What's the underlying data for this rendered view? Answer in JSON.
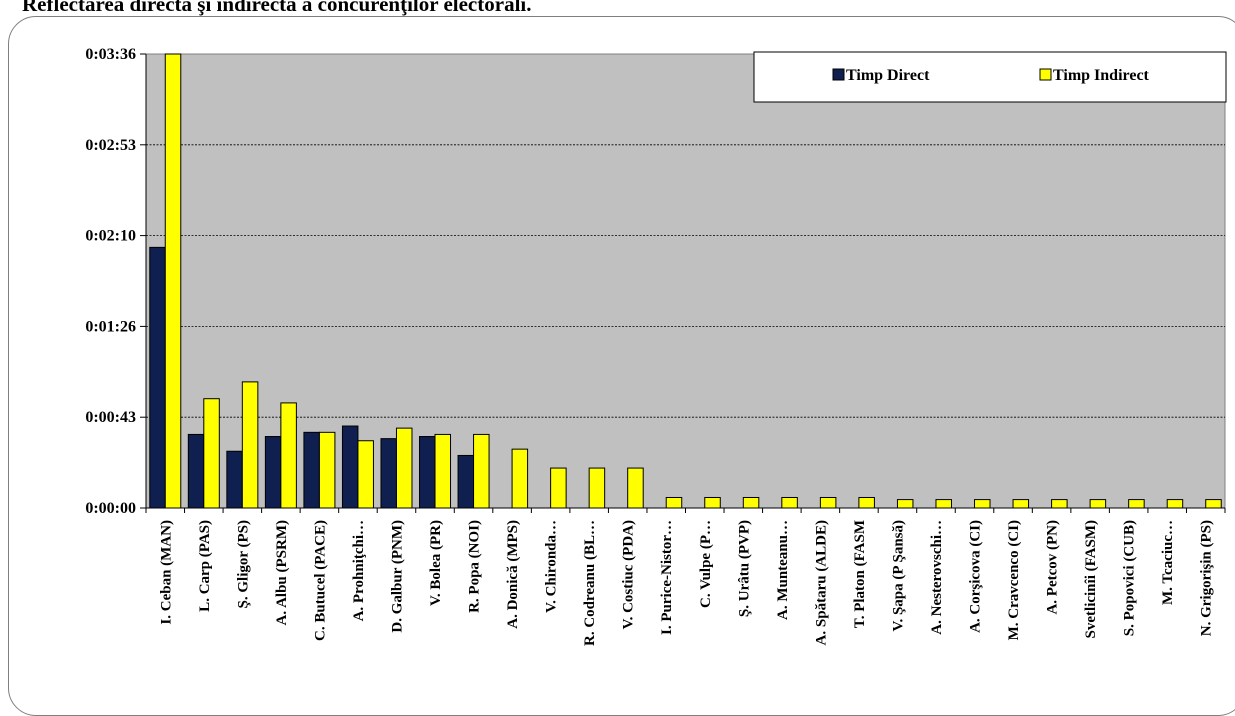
{
  "chart_data": {
    "type": "bar",
    "title": "Reflectarea directă şi indirectă a concurenţilor electorali.",
    "y_ticks": [
      "0:00:00",
      "0:00:43",
      "0:01:26",
      "0:02:10",
      "0:02:53",
      "0:03:36"
    ],
    "ylim_seconds": [
      0,
      216
    ],
    "grid": true,
    "legend_position": "top-right",
    "categories": [
      "I. Ceban (MAN)",
      "L. Carp (PAS)",
      "Ş. Gligor (PS)",
      "A. Albu (PSRM)",
      "C. Butucel (PACE)",
      "A. Prohniţchi…",
      "D. Galbur (PNM)",
      "V. Bolea (PR)",
      "R. Popa (NOI)",
      "A. Donică (MPS)",
      "V. Chironda…",
      "R. Codreanu (BL…",
      "V. Costiuc (PDA)",
      "I. Purice-Nistor…",
      "C. Vulpe (P…",
      "Ş. Urâtu (PVP)",
      "A. Munteanu…",
      "A. Spătaru (ALDE)",
      "T. Platon (FASM",
      "V. Şapa (P Şansă)",
      "A. Nesterovschi…",
      "A. Corşicova (CI)",
      "M. Cravcenco (CI)",
      "A. Petcov (PN)",
      "Svetlicinîi (FASM)",
      "S. Popovici (CUB)",
      "M. Tcaciuc…",
      "N. Grigorişin (PS)"
    ],
    "series": [
      {
        "name": "Timp Direct",
        "color": "#0f1f4f",
        "values": [
          124,
          35,
          27,
          34,
          36,
          39,
          33,
          34,
          25,
          0,
          0,
          0,
          0,
          0,
          0,
          0,
          0,
          0,
          0,
          0,
          0,
          0,
          0,
          0,
          0,
          0,
          0,
          0
        ]
      },
      {
        "name": "Timp Indirect",
        "color": "#ffff00",
        "values": [
          216,
          52,
          60,
          50,
          36,
          32,
          38,
          35,
          35,
          28,
          19,
          19,
          19,
          5,
          5,
          5,
          5,
          5,
          5,
          4,
          4,
          4,
          4,
          4,
          4,
          4,
          4,
          4
        ]
      }
    ]
  }
}
